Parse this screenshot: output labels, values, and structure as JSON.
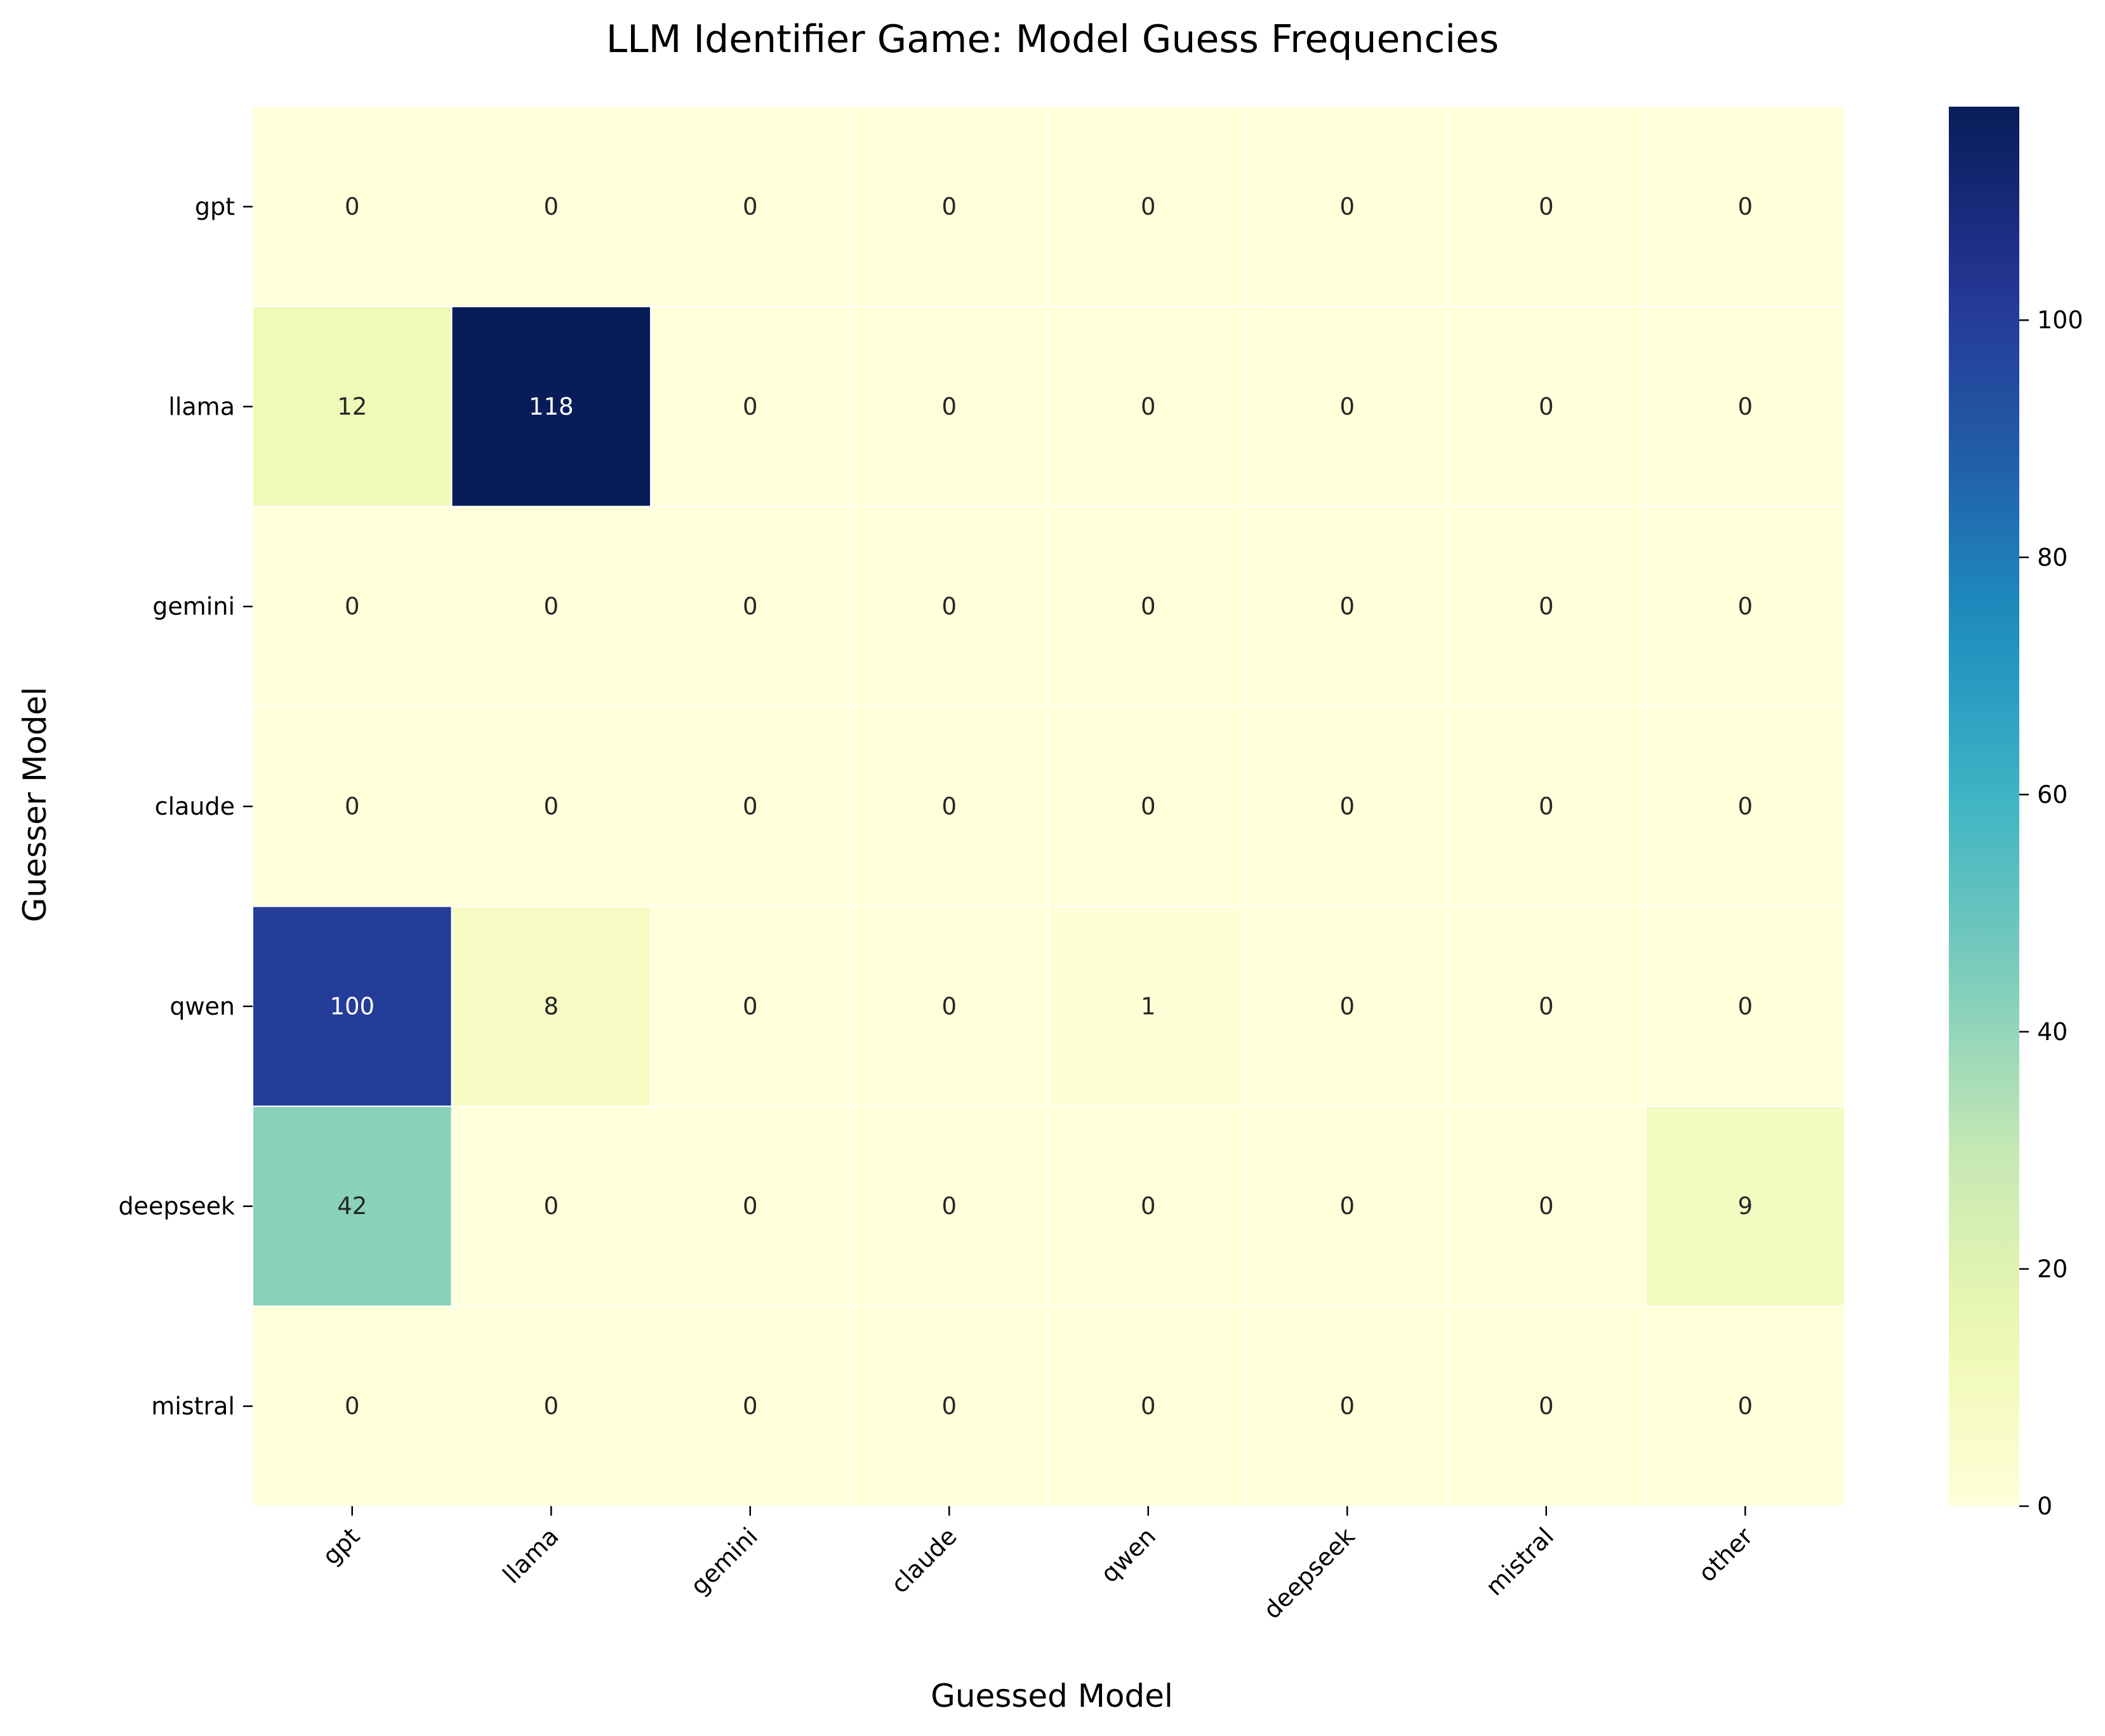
{
  "chart_data": {
    "type": "heatmap",
    "title": "LLM Identifier Game: Model Guess Frequencies",
    "xlabel": "Guessed Model",
    "ylabel": "Guesser Model",
    "x_categories": [
      "gpt",
      "llama",
      "gemini",
      "claude",
      "qwen",
      "deepseek",
      "mistral",
      "other"
    ],
    "y_categories": [
      "gpt",
      "llama",
      "gemini",
      "claude",
      "qwen",
      "deepseek",
      "mistral"
    ],
    "values": [
      [
        0,
        0,
        0,
        0,
        0,
        0,
        0,
        0
      ],
      [
        12,
        118,
        0,
        0,
        0,
        0,
        0,
        0
      ],
      [
        0,
        0,
        0,
        0,
        0,
        0,
        0,
        0
      ],
      [
        0,
        0,
        0,
        0,
        0,
        0,
        0,
        0
      ],
      [
        100,
        8,
        0,
        0,
        1,
        0,
        0,
        0
      ],
      [
        42,
        0,
        0,
        0,
        0,
        0,
        0,
        9
      ],
      [
        0,
        0,
        0,
        0,
        0,
        0,
        0,
        0
      ]
    ],
    "colormap": "YlGnBu",
    "value_range": [
      0,
      118
    ],
    "colorbar_ticks": [
      0,
      20,
      40,
      60,
      80,
      100
    ],
    "annotations": "cell values shown",
    "grid": false,
    "legend": "colorbar at right"
  }
}
